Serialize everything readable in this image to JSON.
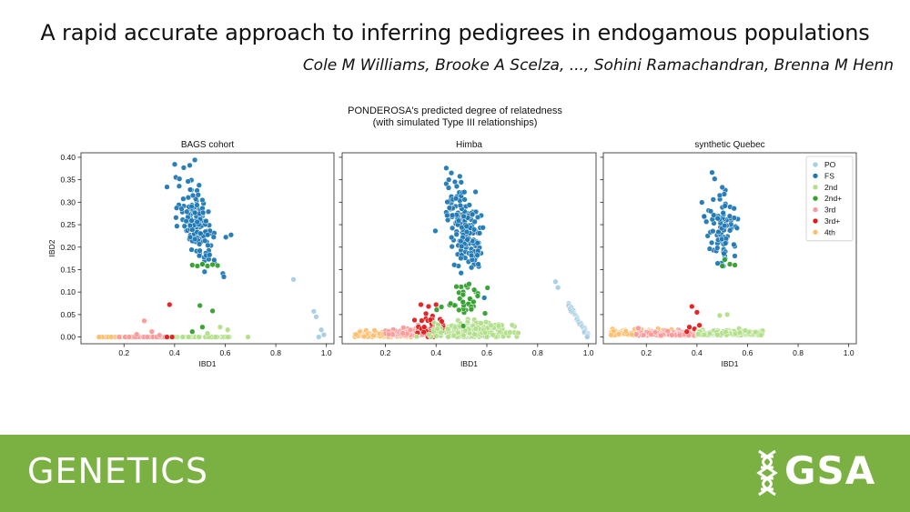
{
  "header": {
    "title": "A rapid accurate approach to inferring pedigrees in endogamous populations",
    "authors": "Cole M Williams, Brooke A Scelza, ..., Sohini Ramachandran, Brenna M Henn"
  },
  "figure": {
    "title_lines": [
      "PONDEROSA's predicted degree of relatedness",
      "(with simulated Type III relationships)"
    ]
  },
  "footer": {
    "journal": "GENETICS",
    "brand": "GSA",
    "icon": "dna-helix-icon",
    "background": "#7bb143"
  },
  "chart_data": {
    "type": "scatter",
    "title": "PONDEROSA's predicted degree of relatedness (with simulated Type III relationships)",
    "xlabel": "IBD1",
    "ylabel": "IBD2",
    "xlim": [
      0.03,
      1.03
    ],
    "ylim": [
      -0.015,
      0.41
    ],
    "xticks": [
      0.2,
      0.4,
      0.6,
      0.8,
      1.0
    ],
    "yticks": [
      0.0,
      0.05,
      0.1,
      0.15,
      0.2,
      0.25,
      0.3,
      0.35,
      0.4
    ],
    "xtick_labels": [
      "0.2",
      "0.4",
      "0.6",
      "0.8",
      "1.0"
    ],
    "ytick_labels": [
      "0.00",
      "0.05",
      "0.10",
      "0.15",
      "0.20",
      "0.25",
      "0.30",
      "0.35",
      "0.40"
    ],
    "grid": false,
    "legend": {
      "placement": "top-right",
      "panel": 2
    },
    "series_styles": [
      {
        "name": "PO",
        "color": "#a6cee3"
      },
      {
        "name": "FS",
        "color": "#1f78b4"
      },
      {
        "name": "2nd",
        "color": "#b2df8a"
      },
      {
        "name": "2nd+",
        "color": "#33a02c"
      },
      {
        "name": "3rd",
        "color": "#fb9a99"
      },
      {
        "name": "3rd+",
        "color": "#e31a1c"
      },
      {
        "name": "4th",
        "color": "#fdbf6f"
      }
    ],
    "panels": [
      {
        "title": "BAGS cohort",
        "clusters": [
          {
            "series": "4th",
            "shape": "band",
            "x": [
              0.1,
              0.26
            ],
            "y": 0.0,
            "n": 40
          },
          {
            "series": "3rd",
            "shape": "band",
            "x": [
              0.18,
              0.38
            ],
            "y": 0.0,
            "n": 45
          },
          {
            "series": "3rd",
            "shape": "points",
            "points": [
              [
                0.28,
                0.036
              ],
              [
                0.31,
                0.012
              ],
              [
                0.25,
                0.006
              ],
              [
                0.34,
                0.004
              ]
            ]
          },
          {
            "series": "2nd",
            "shape": "band",
            "x": [
              0.38,
              0.62
            ],
            "y": 0.0,
            "n": 60
          },
          {
            "series": "2nd",
            "shape": "points",
            "points": [
              [
                0.58,
                0.022
              ],
              [
                0.61,
                0.016
              ],
              [
                0.69,
                0.0
              ],
              [
                0.53,
                0.008
              ]
            ]
          },
          {
            "series": "2nd+",
            "shape": "points",
            "points": [
              [
                0.5,
                0.07
              ],
              [
                0.55,
                0.058
              ],
              [
                0.51,
                0.022
              ],
              [
                0.47,
                0.012
              ]
            ]
          },
          {
            "series": "3rd+",
            "shape": "points",
            "points": [
              [
                0.39,
                0.0
              ],
              [
                0.37,
                0.0
              ],
              [
                0.38,
                0.072
              ]
            ]
          },
          {
            "series": "FS",
            "shape": "cloud",
            "center": [
              0.49,
              0.25
            ],
            "spread": [
              0.035,
              0.035
            ],
            "tilt": -0.7,
            "n": 150
          },
          {
            "series": "FS",
            "shape": "points",
            "points": [
              [
                0.37,
                0.334
              ],
              [
                0.48,
                0.394
              ],
              [
                0.46,
                0.382
              ]
            ]
          },
          {
            "series": "2nd+",
            "shape": "points",
            "points": [
              [
                0.47,
                0.16
              ],
              [
                0.49,
                0.158
              ],
              [
                0.51,
                0.162
              ],
              [
                0.53,
                0.158
              ],
              [
                0.55,
                0.161
              ],
              [
                0.57,
                0.159
              ]
            ]
          },
          {
            "series": "PO",
            "shape": "points",
            "points": [
              [
                0.87,
                0.128
              ],
              [
                0.95,
                0.057
              ],
              [
                0.96,
                0.045
              ],
              [
                0.98,
                0.016
              ],
              [
                0.99,
                0.005
              ],
              [
                0.97,
                0.0
              ]
            ]
          }
        ]
      },
      {
        "title": "Himba",
        "clusters": [
          {
            "series": "4th",
            "shape": "band",
            "x": [
              0.08,
              0.32
            ],
            "y": 0.0,
            "spread": 0.006,
            "n": 90
          },
          {
            "series": "3rd",
            "shape": "band",
            "x": [
              0.2,
              0.42
            ],
            "y": 0.004,
            "spread": 0.008,
            "n": 110
          },
          {
            "series": "3rd+",
            "shape": "cloud",
            "center": [
              0.39,
              0.018
            ],
            "spread": [
              0.025,
              0.014
            ],
            "tilt": 0,
            "n": 45
          },
          {
            "series": "3rd+",
            "shape": "points",
            "points": [
              [
                0.34,
                0.072
              ],
              [
                0.37,
                0.068
              ],
              [
                0.36,
                0.052
              ],
              [
                0.4,
                0.072
              ]
            ]
          },
          {
            "series": "2nd",
            "shape": "cloud",
            "center": [
              0.53,
              0.012
            ],
            "spread": [
              0.07,
              0.01
            ],
            "tilt": 0,
            "n": 260
          },
          {
            "series": "2nd+",
            "shape": "cloud",
            "center": [
              0.52,
              0.085
            ],
            "spread": [
              0.035,
              0.022
            ],
            "tilt": 0,
            "n": 38
          },
          {
            "series": "2nd+",
            "shape": "points",
            "points": [
              [
                0.53,
                0.118
              ],
              [
                0.48,
                0.112
              ],
              [
                0.55,
                0.105
              ],
              [
                0.49,
                0.06
              ]
            ]
          },
          {
            "series": "FS",
            "shape": "cloud",
            "center": [
              0.51,
              0.245
            ],
            "spread": [
              0.035,
              0.045
            ],
            "tilt": -0.5,
            "n": 170
          },
          {
            "series": "FS",
            "shape": "points",
            "points": [
              [
                0.44,
                0.376
              ],
              [
                0.46,
                0.365
              ],
              [
                0.45,
                0.35
              ]
            ]
          },
          {
            "series": "PO",
            "shape": "line",
            "from": [
              0.92,
              0.075
            ],
            "to": [
              1.0,
              0.0
            ],
            "n": 30
          },
          {
            "series": "PO",
            "shape": "points",
            "points": [
              [
                0.87,
                0.123
              ],
              [
                0.88,
                0.11
              ]
            ]
          }
        ]
      },
      {
        "title": "synthetic Quebec",
        "clusters": [
          {
            "series": "4th",
            "shape": "band",
            "x": [
              0.06,
              0.3
            ],
            "y": 0.004,
            "spread": 0.006,
            "n": 90
          },
          {
            "series": "3rd",
            "shape": "band",
            "x": [
              0.16,
              0.4
            ],
            "y": 0.003,
            "spread": 0.005,
            "n": 110
          },
          {
            "series": "3rd+",
            "shape": "points",
            "points": [
              [
                0.38,
                0.068
              ],
              [
                0.4,
                0.055
              ],
              [
                0.39,
                0.018
              ],
              [
                0.41,
                0.026
              ],
              [
                0.37,
                0.022
              ],
              [
                0.36,
                0.012
              ],
              [
                0.42,
                0.01
              ]
            ]
          },
          {
            "series": "2nd",
            "shape": "band",
            "x": [
              0.4,
              0.66
            ],
            "y": 0.004,
            "spread": 0.005,
            "n": 160
          },
          {
            "series": "2nd",
            "shape": "points",
            "points": [
              [
                0.49,
                0.048
              ],
              [
                0.52,
                0.05
              ]
            ]
          },
          {
            "series": "FS",
            "shape": "cloud",
            "center": [
              0.5,
              0.245
            ],
            "spread": [
              0.03,
              0.035
            ],
            "tilt": -0.4,
            "n": 90
          },
          {
            "series": "FS",
            "shape": "points",
            "points": [
              [
                0.46,
                0.366
              ],
              [
                0.47,
                0.352
              ],
              [
                0.49,
                0.315
              ],
              [
                0.5,
                0.333
              ]
            ]
          },
          {
            "series": "2nd+",
            "shape": "points",
            "points": [
              [
                0.5,
                0.158
              ],
              [
                0.53,
                0.162
              ],
              [
                0.55,
                0.16
              ],
              [
                0.51,
                0.172
              ]
            ]
          }
        ]
      }
    ]
  }
}
